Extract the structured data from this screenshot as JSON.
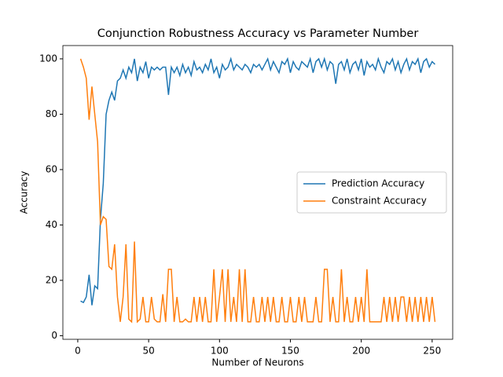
{
  "chart_data": {
    "type": "line",
    "title": "Conjunction Robustness Accuracy vs Parameter Number",
    "x_label": "Number of Neurons",
    "y_label": "Accuracy",
    "x": [
      2,
      4,
      6,
      8,
      10,
      12,
      14,
      16,
      18,
      20,
      22,
      24,
      26,
      28,
      30,
      32,
      34,
      36,
      38,
      40,
      42,
      44,
      46,
      48,
      50,
      52,
      54,
      56,
      58,
      60,
      62,
      64,
      66,
      68,
      70,
      72,
      74,
      76,
      78,
      80,
      82,
      84,
      86,
      88,
      90,
      92,
      94,
      96,
      98,
      100,
      102,
      104,
      106,
      108,
      110,
      112,
      114,
      116,
      118,
      120,
      122,
      124,
      126,
      128,
      130,
      132,
      134,
      136,
      138,
      140,
      142,
      144,
      146,
      148,
      150,
      152,
      154,
      156,
      158,
      160,
      162,
      164,
      166,
      168,
      170,
      172,
      174,
      176,
      178,
      180,
      182,
      184,
      186,
      188,
      190,
      192,
      194,
      196,
      198,
      200,
      202,
      204,
      206,
      208,
      210,
      212,
      214,
      216,
      218,
      220,
      222,
      224,
      226,
      228,
      230,
      232,
      234,
      236,
      238,
      240,
      242,
      244,
      246,
      248,
      250,
      252
    ],
    "series": [
      {
        "name": "Prediction Accuracy",
        "color": "#1f77b4",
        "values": [
          12.5,
          12,
          14,
          22,
          11,
          18,
          17,
          42,
          55,
          80,
          85,
          88,
          85,
          92,
          93,
          96,
          93,
          97,
          95,
          100,
          92,
          97,
          95,
          99,
          93,
          97,
          96,
          97,
          96,
          97,
          97,
          87,
          97,
          95,
          97,
          94,
          98,
          95,
          97,
          94,
          99,
          96,
          97,
          95,
          98,
          96,
          100,
          95,
          97,
          93,
          98,
          96,
          97,
          100,
          96,
          98,
          97,
          96,
          98,
          97,
          95,
          98,
          97,
          98,
          96,
          98,
          100,
          96,
          99,
          97,
          95,
          99,
          98,
          100,
          95,
          99,
          97,
          96,
          99,
          98,
          97,
          100,
          95,
          99,
          100,
          97,
          100,
          96,
          99,
          98,
          91,
          98,
          99,
          96,
          100,
          95,
          98,
          99,
          96,
          100,
          94,
          99,
          97,
          98,
          96,
          100,
          97,
          95,
          99,
          98,
          100,
          96,
          99,
          95,
          98,
          100,
          96,
          99,
          98,
          100,
          95,
          99,
          100,
          97,
          99,
          98
        ]
      },
      {
        "name": "Constraint Accuracy",
        "color": "#ff7f0e",
        "values": [
          100,
          97,
          93,
          78,
          90,
          80,
          70,
          40,
          43,
          42,
          25,
          24,
          33,
          14,
          5,
          14,
          33,
          6,
          5,
          34,
          5,
          6,
          14,
          5,
          5,
          14,
          6,
          5,
          5,
          15,
          5,
          24,
          24,
          5,
          14,
          5,
          5,
          6,
          5,
          5,
          14,
          5,
          14,
          5,
          14,
          5,
          5,
          24,
          5,
          14,
          24,
          5,
          24,
          5,
          14,
          5,
          24,
          5,
          24,
          5,
          5,
          14,
          5,
          5,
          14,
          5,
          14,
          5,
          14,
          5,
          5,
          14,
          5,
          5,
          14,
          5,
          5,
          14,
          5,
          14,
          5,
          5,
          5,
          14,
          5,
          5,
          24,
          24,
          5,
          14,
          5,
          5,
          24,
          5,
          14,
          5,
          5,
          14,
          5,
          14,
          5,
          24,
          5,
          5,
          5,
          5,
          5,
          14,
          5,
          14,
          5,
          14,
          5,
          14,
          14,
          5,
          14,
          5,
          14,
          5,
          14,
          5,
          14,
          5,
          14,
          5
        ]
      }
    ],
    "xlim": [
      -10.5,
      264.5
    ],
    "ylim": [
      -1.3,
      104.8
    ],
    "xticks": [
      0,
      50,
      100,
      150,
      200,
      250
    ],
    "yticks": [
      0,
      20,
      40,
      60,
      80,
      100
    ],
    "legend": "center right"
  }
}
